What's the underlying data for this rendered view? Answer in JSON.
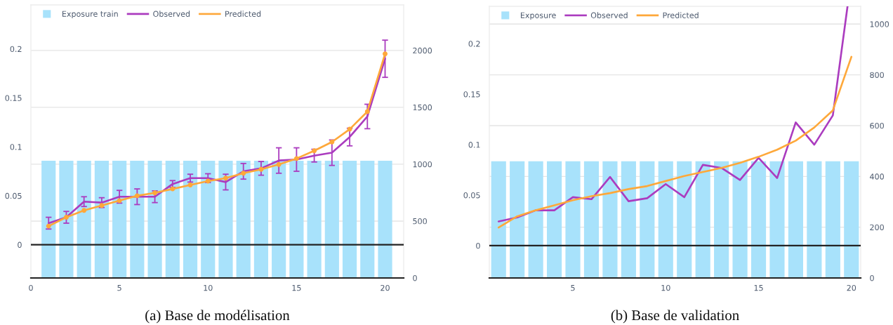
{
  "chart_data": [
    {
      "type": "line",
      "x": [
        1,
        2,
        3,
        4,
        5,
        6,
        7,
        8,
        9,
        10,
        11,
        12,
        13,
        14,
        15,
        16,
        17,
        18,
        19,
        20
      ],
      "xlim": [
        0,
        21.05
      ],
      "xticks": [
        0,
        5,
        10,
        15,
        20
      ],
      "ylim": [
        -0.034,
        0.245
      ],
      "yticks": [
        0,
        0.05,
        0.1,
        0.15,
        0.2
      ],
      "y2lim": [
        0,
        2400
      ],
      "y2ticks": [
        0,
        500,
        1000,
        1500,
        2000
      ],
      "grid": true,
      "legend": "top left",
      "series": [
        {
          "name": "Exposure train",
          "type": "bar",
          "axis": "y2",
          "color": "#a8e2fb",
          "values": [
            1030,
            1030,
            1030,
            1030,
            1030,
            1030,
            1030,
            1030,
            1030,
            1030,
            1030,
            1030,
            1030,
            1030,
            1030,
            1030,
            1030,
            1030,
            1030,
            1030
          ]
        },
        {
          "name": "Observed",
          "color": "#ab3cbf",
          "values": [
            0.022,
            0.028,
            0.044,
            0.043,
            0.049,
            0.049,
            0.049,
            0.062,
            0.068,
            0.068,
            0.064,
            0.075,
            0.078,
            0.086,
            0.087,
            0.091,
            0.094,
            0.11,
            0.131,
            0.19
          ],
          "errors": [
            0.006,
            0.006,
            0.005,
            0.005,
            0.0065,
            0.008,
            0.006,
            0.0035,
            0.004,
            0.0045,
            0.008,
            0.008,
            0.007,
            0.013,
            0.012,
            0.0065,
            0.013,
            0.009,
            0.0125,
            0.019
          ]
        },
        {
          "name": "Predicted",
          "color": "#fea83a",
          "marker": "circle",
          "values": [
            0.019,
            0.028,
            0.035,
            0.04,
            0.045,
            0.05,
            0.053,
            0.057,
            0.061,
            0.065,
            0.068,
            0.073,
            0.077,
            0.082,
            0.088,
            0.096,
            0.105,
            0.118,
            0.136,
            0.195
          ]
        }
      ],
      "ref_lines": [
        {
          "axis": "y",
          "value": 0,
          "color": "#222222"
        }
      ],
      "annotations": [
        "(a) Base de modélisation"
      ]
    },
    {
      "type": "line",
      "x": [
        1,
        2,
        3,
        4,
        5,
        6,
        7,
        8,
        9,
        10,
        11,
        12,
        13,
        14,
        15,
        16,
        17,
        18,
        19,
        20
      ],
      "xlim": [
        0.5,
        20.5
      ],
      "xticks": [
        5,
        10,
        15,
        20
      ],
      "ylim": [
        -0.032,
        0.237
      ],
      "yticks": [
        0,
        0.05,
        0.1,
        0.15,
        0.2
      ],
      "y2lim": [
        0,
        1070
      ],
      "y2ticks": [
        0,
        200,
        400,
        600,
        800,
        1000
      ],
      "grid": true,
      "legend": "top left",
      "series": [
        {
          "name": "Exposure",
          "type": "bar",
          "axis": "y2",
          "color": "#a8e2fb",
          "values": [
            460,
            460,
            460,
            460,
            460,
            460,
            460,
            460,
            460,
            460,
            460,
            460,
            460,
            460,
            460,
            460,
            460,
            460,
            460,
            460
          ]
        },
        {
          "name": "Observed",
          "color": "#ab3cbf",
          "x": [
            1,
            2,
            3,
            4,
            5,
            6,
            7,
            8,
            9,
            10,
            11,
            12,
            13,
            14,
            15,
            16,
            17,
            18,
            19,
            19.79
          ],
          "values": [
            0.024,
            0.028,
            0.035,
            0.035,
            0.048,
            0.046,
            0.068,
            0.044,
            0.047,
            0.061,
            0.048,
            0.08,
            0.077,
            0.065,
            0.087,
            0.067,
            0.122,
            0.1,
            0.129,
            0.237
          ]
        },
        {
          "name": "Predicted",
          "color": "#fea83a",
          "values": [
            0.018,
            0.029,
            0.035,
            0.04,
            0.045,
            0.049,
            0.052,
            0.056,
            0.059,
            0.064,
            0.069,
            0.073,
            0.077,
            0.082,
            0.088,
            0.095,
            0.104,
            0.117,
            0.134,
            0.187
          ]
        }
      ],
      "ref_lines": [
        {
          "axis": "y",
          "value": 0,
          "color": "#222222"
        }
      ],
      "annotations": [
        "(b) Base de validation"
      ]
    }
  ]
}
